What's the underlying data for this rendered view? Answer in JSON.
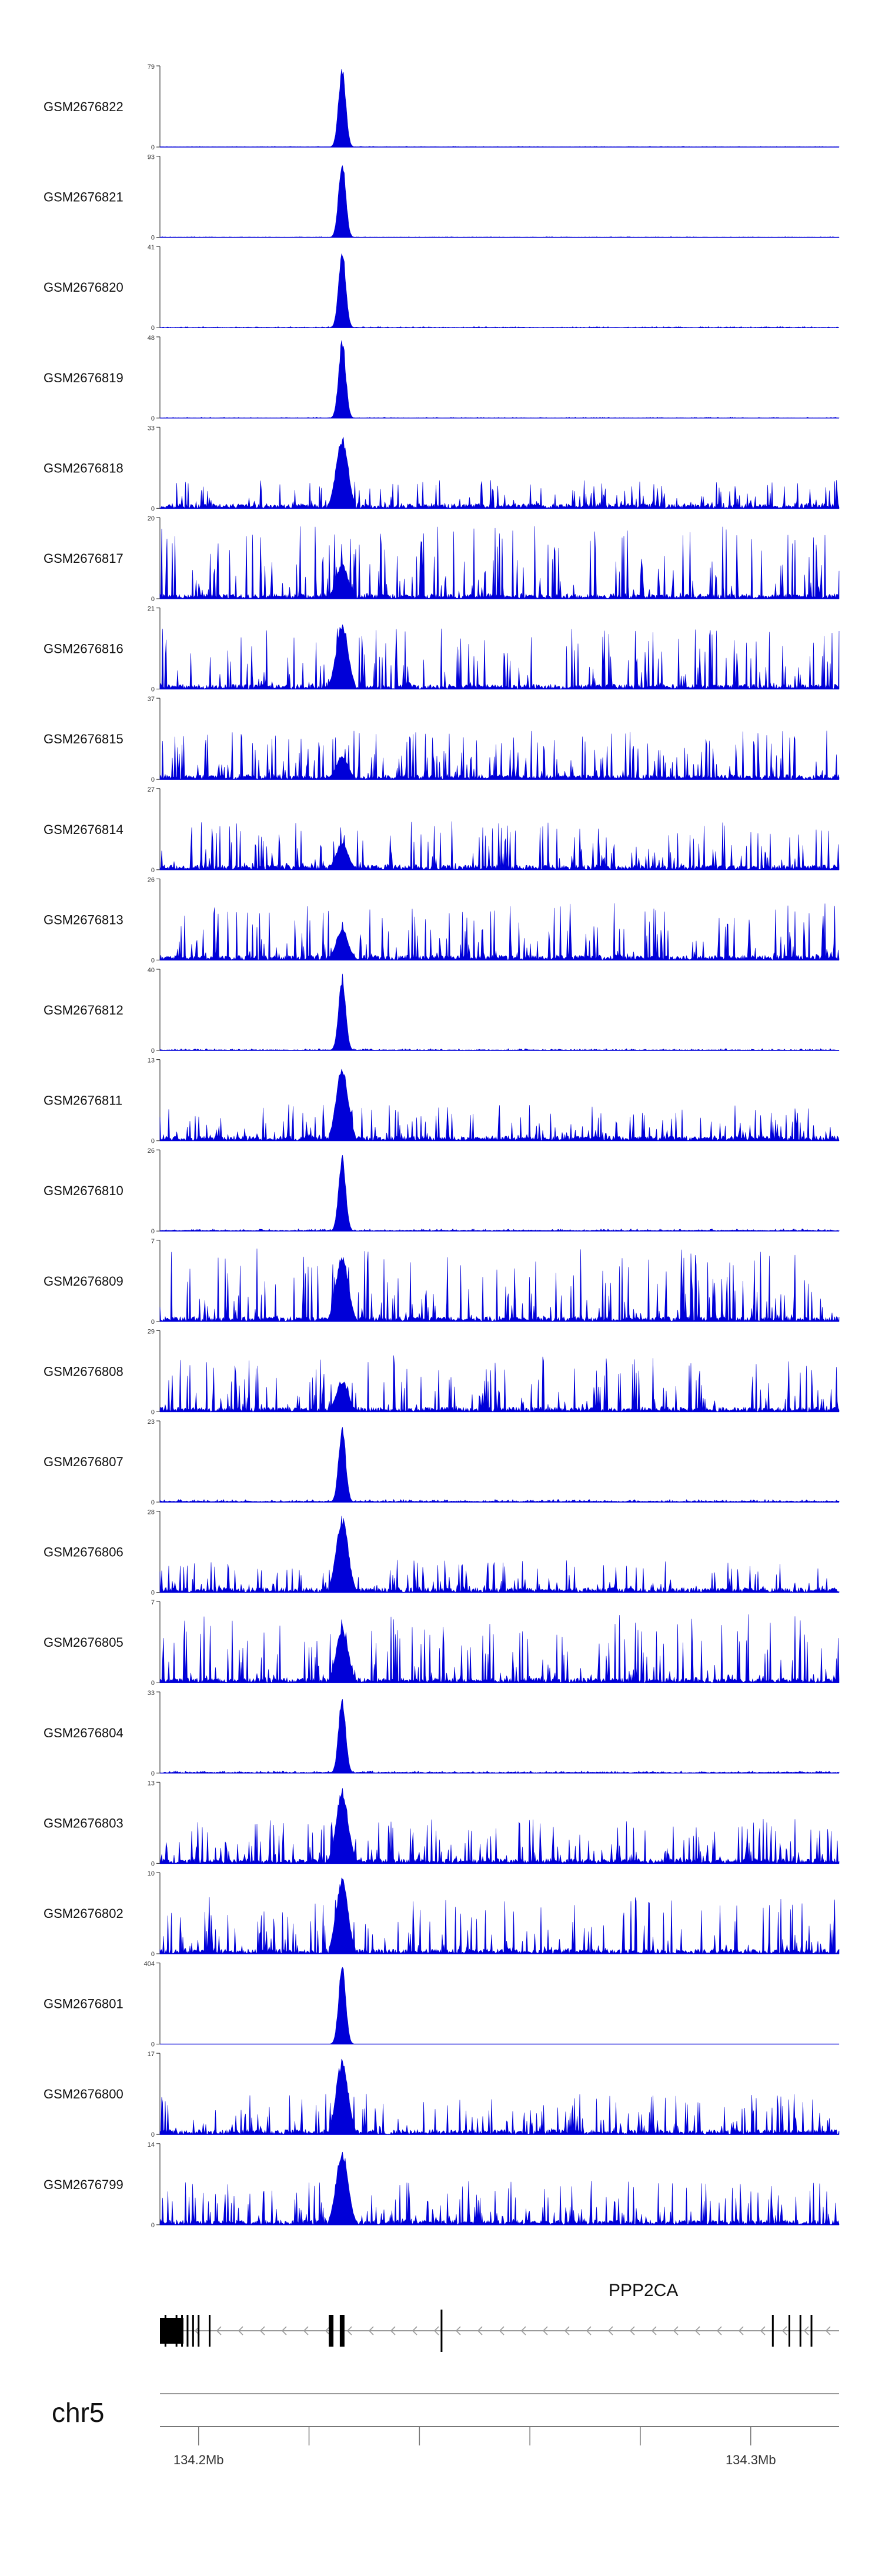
{
  "chart_data": {
    "type": "area",
    "description_colors": {
      "signal": "#0000d8",
      "axis": "#444444",
      "gene": "#000000",
      "intron": "#9a9a9a"
    },
    "tracks": [
      {
        "name": "GSM2676822",
        "ymax": "79",
        "ymin": "0",
        "peak": 1.0,
        "bg": 0.05,
        "style": "spike"
      },
      {
        "name": "GSM2676821",
        "ymax": "93",
        "ymin": "0",
        "peak": 1.0,
        "bg": 0.05,
        "style": "spike"
      },
      {
        "name": "GSM2676820",
        "ymax": "41",
        "ymin": "0",
        "peak": 1.0,
        "bg": 0.08,
        "style": "spike"
      },
      {
        "name": "GSM2676819",
        "ymax": "48",
        "ymin": "0",
        "peak": 1.0,
        "bg": 0.06,
        "style": "spike"
      },
      {
        "name": "GSM2676818",
        "ymax": "33",
        "ymin": "0",
        "peak": 0.9,
        "bg": 0.35,
        "style": "noisy"
      },
      {
        "name": "GSM2676817",
        "ymax": "20",
        "ymin": "0",
        "peak": 0.45,
        "bg": 0.9,
        "style": "noisy"
      },
      {
        "name": "GSM2676816",
        "ymax": "21",
        "ymin": "0",
        "peak": 0.85,
        "bg": 0.75,
        "style": "noisy"
      },
      {
        "name": "GSM2676815",
        "ymax": "37",
        "ymin": "0",
        "peak": 0.3,
        "bg": 0.6,
        "style": "noisy"
      },
      {
        "name": "GSM2676814",
        "ymax": "27",
        "ymin": "0",
        "peak": 0.35,
        "bg": 0.6,
        "style": "noisy"
      },
      {
        "name": "GSM2676813",
        "ymax": "26",
        "ymin": "0",
        "peak": 0.4,
        "bg": 0.7,
        "style": "noisy"
      },
      {
        "name": "GSM2676812",
        "ymax": "40",
        "ymin": "0",
        "peak": 0.95,
        "bg": 0.12,
        "style": "spike"
      },
      {
        "name": "GSM2676811",
        "ymax": "13",
        "ymin": "0",
        "peak": 0.95,
        "bg": 0.45,
        "style": "noisy"
      },
      {
        "name": "GSM2676810",
        "ymax": "26",
        "ymin": "0",
        "peak": 0.95,
        "bg": 0.15,
        "style": "spike"
      },
      {
        "name": "GSM2676809",
        "ymax": "7",
        "ymin": "0",
        "peak": 0.85,
        "bg": 0.9,
        "style": "noisy"
      },
      {
        "name": "GSM2676808",
        "ymax": "29",
        "ymin": "0",
        "peak": 0.4,
        "bg": 0.7,
        "style": "noisy"
      },
      {
        "name": "GSM2676807",
        "ymax": "23",
        "ymin": "0",
        "peak": 0.95,
        "bg": 0.18,
        "style": "spike"
      },
      {
        "name": "GSM2676806",
        "ymax": "28",
        "ymin": "0",
        "peak": 0.95,
        "bg": 0.4,
        "style": "noisy"
      },
      {
        "name": "GSM2676805",
        "ymax": "7",
        "ymin": "0",
        "peak": 0.7,
        "bg": 0.85,
        "style": "noisy"
      },
      {
        "name": "GSM2676804",
        "ymax": "33",
        "ymin": "0",
        "peak": 0.95,
        "bg": 0.15,
        "style": "spike"
      },
      {
        "name": "GSM2676803",
        "ymax": "13",
        "ymin": "0",
        "peak": 0.95,
        "bg": 0.55,
        "style": "noisy"
      },
      {
        "name": "GSM2676802",
        "ymax": "10",
        "ymin": "0",
        "peak": 0.95,
        "bg": 0.7,
        "style": "noisy"
      },
      {
        "name": "GSM2676801",
        "ymax": "404",
        "ymin": "0",
        "peak": 1.0,
        "bg": 0.01,
        "style": "spike"
      },
      {
        "name": "GSM2676800",
        "ymax": "17",
        "ymin": "0",
        "peak": 0.95,
        "bg": 0.5,
        "style": "noisy"
      },
      {
        "name": "GSM2676799",
        "ymax": "14",
        "ymin": "0",
        "peak": 0.95,
        "bg": 0.55,
        "style": "noisy"
      }
    ],
    "region": {
      "start_mb": 134.193,
      "end_mb": 134.316,
      "peak_mb": 134.226
    },
    "gene": {
      "name": "PPP2CA",
      "strand": "-",
      "start_mb": 134.193,
      "end_mb": 134.316,
      "exons_mb": [
        134.194,
        134.196,
        134.197,
        134.198,
        134.199,
        134.2,
        134.202,
        134.224,
        134.226,
        134.226,
        134.244,
        134.304,
        134.307,
        134.309,
        134.311
      ]
    },
    "chromosome": "chr5",
    "xaxis": {
      "ticks_mb": [
        134.2,
        134.22,
        134.24,
        134.26,
        134.28,
        134.3
      ],
      "labels": [
        "134.2Mb",
        "",
        "",
        "",
        "",
        "134.3Mb"
      ]
    }
  }
}
